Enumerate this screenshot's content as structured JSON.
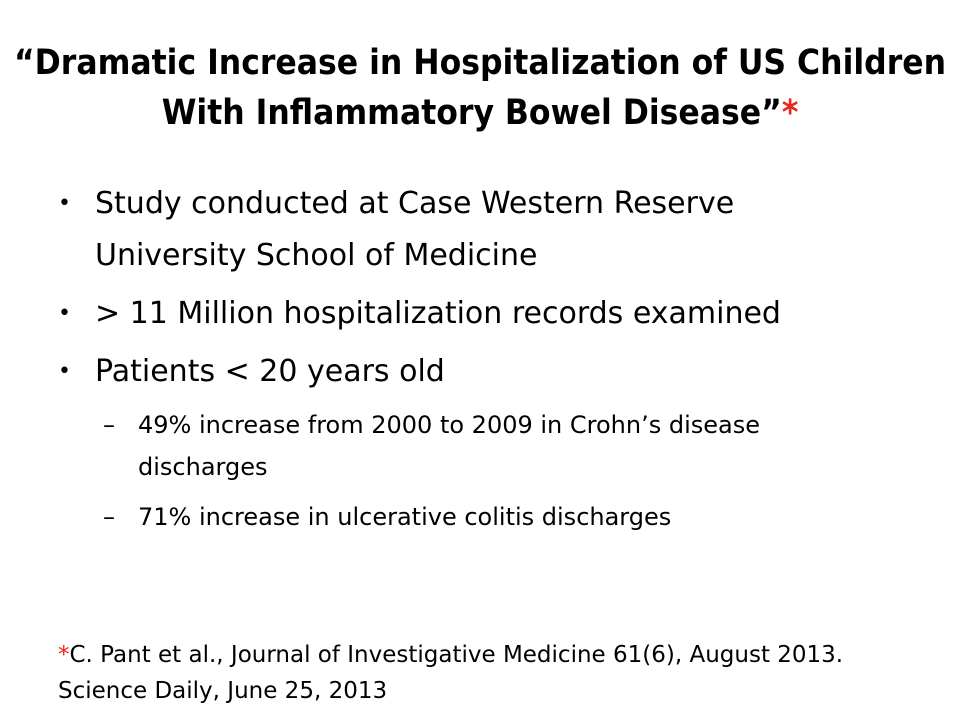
{
  "slide": {
    "title": "“Dramatic Increase in Hospitalization of US Children With Inflammatory Bowel Disease”",
    "title_marker": "*",
    "bullets": [
      {
        "text": "Study conducted at Case Western Reserve University School of Medicine"
      },
      {
        "text": "> 11 Million hospitalization records examined"
      },
      {
        "text": "Patients < 20 years old"
      }
    ],
    "sub_bullets": [
      {
        "text": "49% increase from 2000 to 2009 in Crohn’s disease discharges"
      },
      {
        "text": "71%  increase in ulcerative colitis discharges"
      }
    ],
    "footnote_marker": "*",
    "footnote_line1": "C. Pant et al., Journal of Investigative Medicine 61(6), August 2013.",
    "footnote_line2": "Science Daily, June 25, 2013"
  },
  "colors": {
    "text": "#000000",
    "accent_asterisk": "#e8281e",
    "background": "#ffffff"
  },
  "icons": {
    "bullet": "bullet-dot",
    "sub_bullet": "en-dash"
  }
}
